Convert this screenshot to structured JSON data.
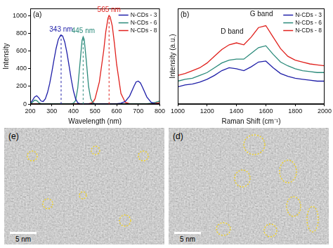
{
  "chart_data": [
    {
      "type": "line",
      "panel": "(a)",
      "x_label": "Wavelength (nm)",
      "y_label": "Intensity",
      "x": [
        200,
        210,
        220,
        230,
        240,
        250,
        260,
        270,
        280,
        290,
        300,
        310,
        320,
        330,
        340,
        343,
        350,
        360,
        370,
        380,
        390,
        400,
        410,
        420,
        430,
        440,
        445,
        450,
        460,
        470,
        480,
        490,
        500,
        520,
        540,
        550,
        560,
        565,
        570,
        580,
        590,
        600,
        620,
        640,
        660,
        680,
        690,
        700,
        710,
        720,
        740,
        760,
        780,
        800
      ],
      "series": [
        {
          "name": "N-CDs - 3",
          "color": "#1f1fa8",
          "values": [
            10,
            40,
            80,
            95,
            70,
            35,
            30,
            60,
            130,
            230,
            360,
            500,
            630,
            730,
            775,
            780,
            770,
            700,
            580,
            430,
            280,
            150,
            60,
            15,
            5,
            5,
            5,
            5,
            5,
            5,
            5,
            5,
            5,
            5,
            5,
            5,
            5,
            5,
            5,
            5,
            5,
            5,
            10,
            30,
            90,
            200,
            250,
            260,
            240,
            190,
            80,
            20,
            5,
            5
          ]
        },
        {
          "name": "N-CDs - 6",
          "color": "#2a8a7a",
          "values": [
            5,
            20,
            45,
            40,
            15,
            5,
            5,
            5,
            5,
            5,
            5,
            5,
            5,
            5,
            5,
            5,
            5,
            5,
            5,
            5,
            5,
            10,
            40,
            180,
            450,
            720,
            760,
            730,
            480,
            200,
            60,
            15,
            5,
            5,
            5,
            5,
            5,
            5,
            5,
            5,
            5,
            5,
            5,
            5,
            5,
            5,
            5,
            5,
            5,
            5,
            5,
            10,
            20,
            35
          ]
        },
        {
          "name": "N-CDs - 8",
          "color": "#e0201c",
          "values": [
            5,
            5,
            5,
            5,
            5,
            5,
            5,
            5,
            5,
            5,
            5,
            5,
            5,
            5,
            5,
            5,
            5,
            5,
            5,
            5,
            5,
            5,
            5,
            5,
            5,
            5,
            5,
            5,
            5,
            5,
            10,
            20,
            60,
            250,
            600,
            820,
            970,
            1000,
            985,
            880,
            680,
            450,
            120,
            20,
            5,
            5,
            5,
            5,
            5,
            5,
            5,
            5,
            10,
            15
          ]
        }
      ],
      "annotations": [
        {
          "text": "343 nm",
          "x": 343,
          "y": 780,
          "color": "#1f1fa8",
          "line_style": "dashed"
        },
        {
          "text": "445 nm",
          "x": 445,
          "y": 760,
          "color": "#2a8a7a",
          "line_style": "dashed"
        },
        {
          "text": "565 nm",
          "x": 565,
          "y": 1000,
          "color": "#e0201c",
          "line_style": "dashed"
        }
      ],
      "xlim": [
        200,
        800
      ],
      "xticks": [
        200,
        300,
        400,
        500,
        600,
        700,
        800
      ],
      "ylim": [
        0,
        1080
      ],
      "yticks": [
        0,
        200,
        400,
        600,
        800,
        1000
      ],
      "grid": false,
      "legend": "upper right"
    },
    {
      "type": "line",
      "panel": "(b)",
      "x_label": "Raman Shift (cm⁻¹)",
      "y_label": "Intensity (a.u.)",
      "x": [
        1000,
        1050,
        1100,
        1150,
        1200,
        1250,
        1300,
        1350,
        1400,
        1450,
        1500,
        1550,
        1600,
        1650,
        1700,
        1750,
        1800,
        1850,
        1900,
        1950,
        2000
      ],
      "series": [
        {
          "name": "N-CDs - 3",
          "color": "#1f1fa8",
          "values": [
            18,
            20,
            21,
            23,
            26,
            30,
            35,
            38,
            37,
            35,
            39,
            44,
            45,
            38,
            32,
            29,
            27,
            26,
            25,
            24,
            24
          ]
        },
        {
          "name": "N-CDs - 6",
          "color": "#2a8a7a",
          "values": [
            24,
            26,
            27,
            30,
            33,
            38,
            43,
            46,
            47,
            47,
            53,
            59,
            61,
            52,
            44,
            40,
            37,
            35,
            34,
            33,
            33
          ]
        },
        {
          "name": "N-CDs - 8",
          "color": "#e0201c",
          "values": [
            30,
            32,
            35,
            38,
            43,
            50,
            57,
            62,
            64,
            62,
            70,
            80,
            82,
            70,
            58,
            50,
            46,
            44,
            42,
            41,
            40
          ]
        }
      ],
      "annotations": [
        {
          "text": "D band",
          "x": 1370,
          "y": 70
        },
        {
          "text": "G band",
          "x": 1570,
          "y": 88
        }
      ],
      "xlim": [
        1000,
        2000
      ],
      "xticks": [
        1000,
        1200,
        1400,
        1600,
        1800,
        2000
      ],
      "ylim": [
        0,
        100
      ],
      "tick_labels": "x",
      "grid": false,
      "legend": "upper right"
    }
  ],
  "images": [
    {
      "label": "(e)",
      "scale_bar": "5 nm"
    },
    {
      "label": "(d)",
      "scale_bar": "5 nm"
    }
  ]
}
